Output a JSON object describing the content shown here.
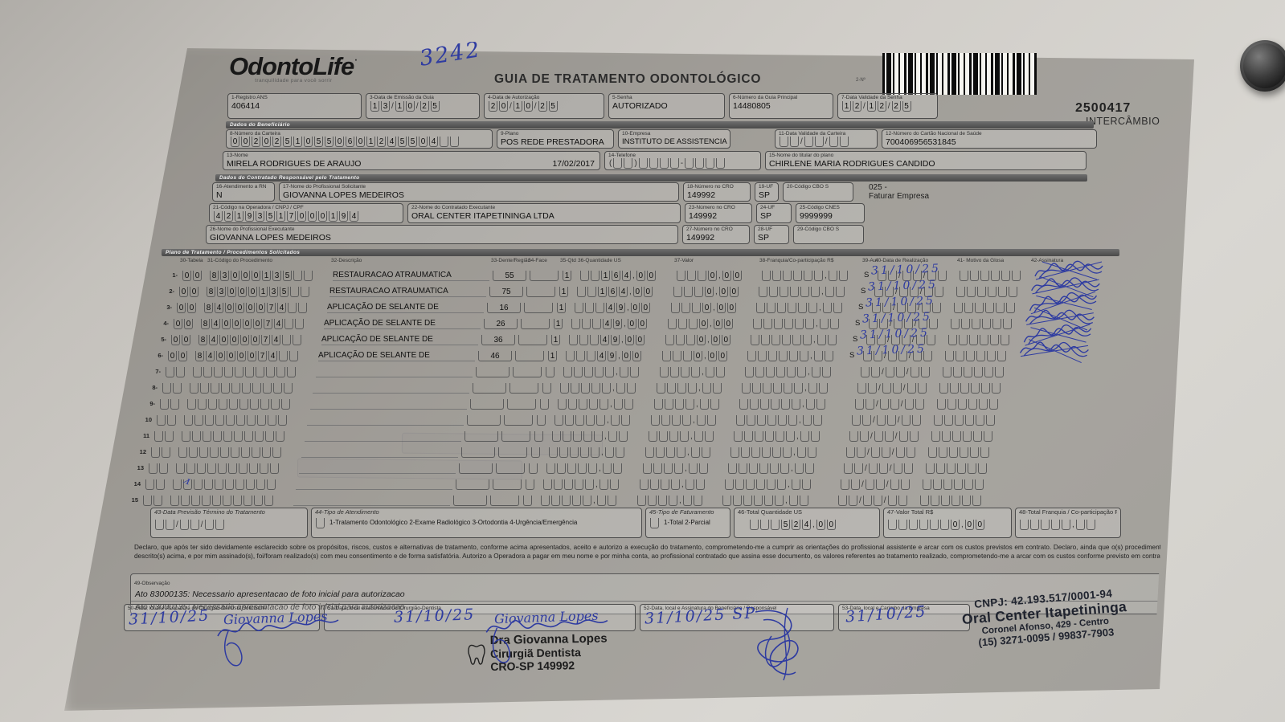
{
  "colors": {
    "ink_blue": "#2e3ba1",
    "paper": "#f6f5f0",
    "section_bar": "#4a4a4a",
    "barcode_black": "#0c0c0c"
  },
  "header": {
    "brand": "OdontoLife",
    "brand_mark": "·",
    "tagline": "tranquilidade para você sorrir",
    "handwritten_number": "3242",
    "title": "GUIA DE TRATAMENTO ODONTOLÓGICO",
    "barcode_tiny_label": "2-Nº",
    "barcode_number": "2500417",
    "barcode_type": "INTERCÂMBIO"
  },
  "top_fields": {
    "registro_ans": {
      "label": "1-Registro ANS",
      "value": "406414"
    },
    "emissao": {
      "label": "3-Data de Emissão da Guia",
      "value": "13/10/25"
    },
    "autorizacao": {
      "label": "4-Data de Autorização",
      "value": "20/10/25"
    },
    "senha": {
      "label": "5-Senha",
      "value": "AUTORIZADO"
    },
    "guia_principal": {
      "label": "6-Número da Guia Principal",
      "value": "14480805"
    },
    "validade_senha": {
      "label": "7-Data Validade da Senha",
      "value": "12/12/25"
    }
  },
  "sections": {
    "beneficiario": "Dados do Beneficiário",
    "contratado": "Dados do Contratado Responsável pelo Tratamento",
    "plano": "Plano de Tratamento / Procedimentos Solicitados"
  },
  "beneficiario": {
    "carteira": {
      "label": "8-Número da Carteira",
      "value": "00202510550601245504  "
    },
    "plano": {
      "label": "9-Plano",
      "value": "POS REDE PRESTADORA"
    },
    "empresa": {
      "label": "10-Empresa",
      "value": "INSTITUTO DE ASSISTENCIA"
    },
    "validade_carteira": {
      "label": "11-Data Validade da Carteira",
      "value": "  /  /  "
    },
    "cartao_nacional": {
      "label": "12-Número do Cartão Nacional de Saúde",
      "value": "700406956531845"
    },
    "nome": {
      "label": "13-Nome",
      "value": "MIRELA RODRIGUES DE ARAUJO",
      "nascimento": "17/02/2017"
    },
    "telefone": {
      "label": "14-Telefone",
      "value": "(  )    -    "
    },
    "titular": {
      "label": "15-Nome do titular do plano",
      "value": "CHIRLENE MARIA RODRIGUES CANDIDO"
    }
  },
  "contratado": {
    "rn": {
      "label": "16-Atendimento a RN",
      "value": "N"
    },
    "solicitante": {
      "label": "17-Nome do Profissional Solicitante",
      "value": "GIOVANNA LOPES MEDEIROS"
    },
    "cro_solicitante": {
      "label": "18-Número no CRO",
      "value": "149992"
    },
    "uf_solicitante": {
      "label": "19-UF",
      "value": "SP"
    },
    "cbo_solicitante": {
      "label": "20-Código CBO S",
      "value": ""
    },
    "faturar_codigo": "025 -",
    "faturar_texto": "Faturar Empresa",
    "operadora_cnpj": {
      "label": "21-Código na Operadora / CNPJ / CPF",
      "value": "42193517000194"
    },
    "executante": {
      "label": "22-Nome do Contratado Executante",
      "value": "ORAL CENTER ITAPETININGA LTDA"
    },
    "cro_executante": {
      "label": "23-Número no CRO",
      "value": "149992"
    },
    "uf_executante": {
      "label": "24-UF",
      "value": "SP"
    },
    "cnes": {
      "label": "25-Código CNES",
      "value": "9999999"
    },
    "prof_executante": {
      "label": "26-Nome do Profissional Executante",
      "value": "GIOVANNA LOPES MEDEIROS"
    },
    "cro_prof": {
      "label": "27-Número no CRO",
      "value": "149992"
    },
    "uf_prof": {
      "label": "28-UF",
      "value": "SP"
    },
    "cbo_prof": {
      "label": "29-Código CBO S",
      "value": ""
    }
  },
  "tabela": {
    "headers": {
      "col30": "30-Tabela",
      "col31": "31-Código do Procedimento",
      "col32": "32-Descrição",
      "col33": "33-Dente/Região",
      "col34": "34-Face",
      "col35": "35-Qtd",
      "col36": "36-Quantidade US",
      "col37": "37-Valor",
      "col38": "38-Franquia/Co-participação R$",
      "col39": "39-Aut",
      "col40": "40-Data de Realização",
      "col41": "41- Motivo da Glosa",
      "col42": "42-Assinatura"
    },
    "rows": [
      {
        "num": "1-",
        "tabela": "00",
        "codigo": "83000135  ",
        "descricao": "RESTAURACAO ATRAUMATICA",
        "dente": "55",
        "face": " ",
        "qtd": "1",
        "us": "  164,00",
        "valor": "   0,00",
        "franquia": "      ,  ",
        "aut": "S",
        "realizacao": "  /  /  ",
        "realizacao_ink": "31/10/25",
        "glosa": "      "
      },
      {
        "num": "2-",
        "tabela": "00",
        "codigo": "83000135  ",
        "descricao": "RESTAURACAO ATRAUMATICA",
        "dente": "75",
        "face": " ",
        "qtd": "1",
        "us": "  164,00",
        "valor": "   0,00",
        "franquia": "      ,  ",
        "aut": "S",
        "realizacao": "  /  /  ",
        "realizacao_ink": "31/10/25",
        "glosa": "      "
      },
      {
        "num": "3-",
        "tabela": "00",
        "codigo": "84000074  ",
        "descricao": "APLICAÇÃO DE SELANTE DE",
        "dente": "16",
        "face": " ",
        "qtd": "1",
        "us": "   49,00",
        "valor": "   0,00",
        "franquia": "      ,  ",
        "aut": "S",
        "realizacao": "  /  /  ",
        "realizacao_ink": "31/10/25",
        "glosa": "      "
      },
      {
        "num": "4-",
        "tabela": "00",
        "codigo": "84000074  ",
        "descricao": "APLICAÇÃO DE SELANTE DE",
        "dente": "26",
        "face": " ",
        "qtd": "1",
        "us": "   49,00",
        "valor": "   0,00",
        "franquia": "      ,  ",
        "aut": "S",
        "realizacao": "  /  /  ",
        "realizacao_ink": "31/10/25",
        "glosa": "      "
      },
      {
        "num": "5-",
        "tabela": "00",
        "codigo": "84000074  ",
        "descricao": "APLICAÇÃO DE SELANTE DE",
        "dente": "36",
        "face": " ",
        "qtd": "1",
        "us": "   49,00",
        "valor": "   0,00",
        "franquia": "      ,  ",
        "aut": "S",
        "realizacao": "  /  /  ",
        "realizacao_ink": "31/10/25",
        "glosa": "      "
      },
      {
        "num": "6-",
        "tabela": "00",
        "codigo": "84000074  ",
        "descricao": "APLICAÇÃO DE SELANTE DE",
        "dente": "46",
        "face": " ",
        "qtd": "1",
        "us": "   49,00",
        "valor": "   0,00",
        "franquia": "      ,  ",
        "aut": "S",
        "realizacao": "  /  /  ",
        "realizacao_ink": "31/10/25",
        "glosa": "      "
      },
      {
        "num": "7-",
        "tabela": "  ",
        "codigo": "          ",
        "descricao": "",
        "dente": "",
        "face": " ",
        "qtd": " ",
        "us": "     ,  ",
        "valor": "    ,  ",
        "franquia": "      ,  ",
        "aut": "",
        "realizacao": "  /  /  ",
        "realizacao_ink": "",
        "glosa": "      "
      },
      {
        "num": "8-",
        "tabela": "  ",
        "codigo": "          ",
        "descricao": "",
        "dente": "",
        "face": " ",
        "qtd": " ",
        "us": "     ,  ",
        "valor": "    ,  ",
        "franquia": "      ,  ",
        "aut": "",
        "realizacao": "  /  /  ",
        "realizacao_ink": "",
        "glosa": "      "
      },
      {
        "num": "9-",
        "tabela": "  ",
        "codigo": "          ",
        "descricao": "",
        "dente": "",
        "face": " ",
        "qtd": " ",
        "us": "     ,  ",
        "valor": "    ,  ",
        "franquia": "      ,  ",
        "aut": "",
        "realizacao": "  /  /  ",
        "realizacao_ink": "",
        "glosa": "      "
      },
      {
        "num": "10",
        "tabela": "  ",
        "codigo": "          ",
        "descricao": "",
        "dente": "",
        "face": " ",
        "qtd": " ",
        "us": "     ,  ",
        "valor": "    ,  ",
        "franquia": "      ,  ",
        "aut": "",
        "realizacao": "  /  /  ",
        "realizacao_ink": "",
        "glosa": "      "
      },
      {
        "num": "11",
        "tabela": "  ",
        "codigo": "          ",
        "descricao": "",
        "dente": "",
        "face": " ",
        "qtd": " ",
        "us": "     ,  ",
        "valor": "    ,  ",
        "franquia": "      ,  ",
        "aut": "",
        "realizacao": "  /  /  ",
        "realizacao_ink": "",
        "glosa": "      "
      },
      {
        "num": "12",
        "tabela": "  ",
        "codigo": "          ",
        "descricao": "",
        "dente": "",
        "face": " ",
        "qtd": " ",
        "us": "     ,  ",
        "valor": "    ,  ",
        "franquia": "      ,  ",
        "aut": "",
        "realizacao": "  /  /  ",
        "realizacao_ink": "",
        "glosa": "      "
      },
      {
        "num": "13",
        "tabela": "  ",
        "codigo": "          ",
        "descricao": "",
        "dente": "",
        "face": " ",
        "qtd": " ",
        "us": "     ,  ",
        "valor": "    ,  ",
        "franquia": "      ,  ",
        "aut": "",
        "realizacao": "  /  /  ",
        "realizacao_ink": "",
        "glosa": "      "
      },
      {
        "num": "14",
        "tabela": "  ",
        "codigo": "          ",
        "descricao": "",
        "dente": "",
        "face": " ",
        "qtd": " ",
        "us": "     ,  ",
        "valor": "    ,  ",
        "franquia": "      ,  ",
        "aut": "",
        "realizacao": "  /  /  ",
        "realizacao_ink": "",
        "glosa": "      "
      },
      {
        "num": "15",
        "tabela": "  ",
        "codigo": "          ",
        "descricao": "",
        "dente": "",
        "face": " ",
        "qtd": " ",
        "us": "     ,  ",
        "valor": "    ,  ",
        "franquia": "      ,  ",
        "aut": "",
        "realizacao": "  /  /  ",
        "realizacao_ink": "",
        "glosa": "      "
      }
    ]
  },
  "totais": {
    "termino": {
      "label": "43-Data Previsão Término do Tratamento",
      "value": "  /  /  "
    },
    "tipo_atendimento": {
      "label": "44-Tipo de Atendimento",
      "checkbox": " ",
      "opcoes": "1-Tratamento Odontológico  2-Exame Radiológico  3-Ortodontia  4-Urgência/Emergência"
    },
    "tipo_faturamento": {
      "label": "45-Tipo de Faturamento",
      "checkbox": " ",
      "opcoes": "1-Total 2-Parcial"
    },
    "total_us": {
      "label": "46-Total Quantidade US",
      "value": "   524,00"
    },
    "valor_total": {
      "label": "47-Valor Total R$",
      "value": "      0,00"
    },
    "total_franquia": {
      "label": "48-Total Franquia / Co-participação R$",
      "value": "     ,  "
    }
  },
  "declaracao": "Declaro, que após ter sido devidamente esclarecido sobre os propósitos, riscos, custos e alternativas de tratamento, conforme acima apresentados, aceito e autorizo a execução do tratamento, comprometendo-me a cumprir as orientações do profissional assistente e arcar com os custos previstos em contrato. Declaro, ainda que o(s) procedimento(s) descrito(s) acima, e por mim assinado(s), foi/foram realizado(s) com meu consentimento e de forma satisfatória. Autorizo a Operadora a pagar em meu nome e por minha conta, ao profissional contratado que assina esse documento, os valores referentes ao tratamento realizado, comprometendo-me a arcar com os custos conforme previsto em contrato.",
  "observacao": {
    "label": "49-Observação",
    "linha1": "Ato 83000135: Necessario apresentacao de foto inicial para autorizacao",
    "linha2": "Ato 83000135: Necessario apresentacao de foto inicial para autorizacao"
  },
  "assinaturas": {
    "solicitante": {
      "label": "50-Data, local e Assinatura do Cirurgião-Dentista Solicitante",
      "data_ink": "31/10/25",
      "nome_ink": "Giovanna Lopes"
    },
    "dentista": {
      "label": "51-Data, local e Assinatura do Cirurgião-Dentista",
      "data_ink": "31/10/25",
      "nome_ink": "Giovanna Lopes"
    },
    "beneficiario": {
      "label": "52-Data, local e Assinatura do Beneficiário / Responsável",
      "data_ink": "31/10/25 SP"
    },
    "empresa": {
      "label": "53-Data, local e Carimbo da Empresa",
      "data_ink": "31/10/25"
    }
  },
  "carimbos": {
    "dentista": {
      "linha1": "Dra Giovanna Lopes",
      "linha2": "Cirurgiã Dentista",
      "linha3": "CRO-SP 149992"
    },
    "empresa": {
      "linha1": "CNPJ: 42.193.517/0001-94",
      "linha2": "Oral Center Itapetininga",
      "linha3": "Coronel Afonso, 429 - Centro",
      "linha4": "(15) 3271-0095 / 99837-7903"
    }
  }
}
